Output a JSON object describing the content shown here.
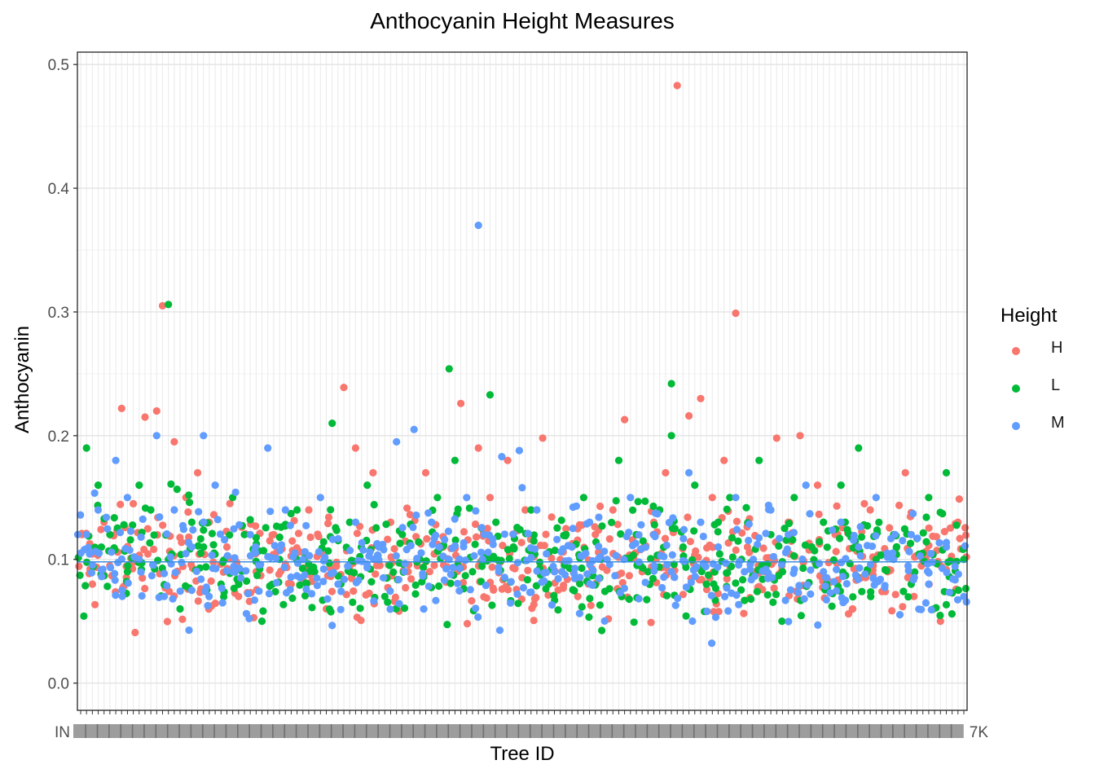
{
  "chart_data": {
    "type": "scatter",
    "title": "Anthocyanin Height Measures",
    "xlabel": "Tree ID",
    "ylabel": "Anthocyanin",
    "ylim": [
      -0.022,
      0.51
    ],
    "yticks": [
      "0.0",
      "0.1",
      "0.2",
      "0.3",
      "0.4",
      "0.5"
    ],
    "x_tick_text_visible": "IN",
    "x_tick_text_visible_end": "7K",
    "reference_line": {
      "y": 0.098,
      "color": "#3d8fe0"
    },
    "grid": true,
    "legend_position": "right",
    "legend": {
      "title": "Height",
      "entries": [
        {
          "name": "H",
          "color": "#F8766D"
        },
        {
          "name": "L",
          "color": "#00BA38"
        },
        {
          "name": "M",
          "color": "#619CFF"
        }
      ]
    },
    "series": [
      {
        "name": "H",
        "color": "#F8766D",
        "outliers": [
          [
            14,
            0.305
          ],
          [
            45,
            0.239
          ],
          [
            65,
            0.226
          ],
          [
            102,
            0.483
          ],
          [
            112,
            0.299
          ]
        ],
        "points": [
          [
            2,
            0.08
          ],
          [
            4,
            0.13
          ],
          [
            7,
            0.222
          ],
          [
            9,
            0.145
          ],
          [
            11,
            0.215
          ],
          [
            13,
            0.22
          ],
          [
            16,
            0.195
          ],
          [
            18,
            0.15
          ],
          [
            20,
            0.17
          ],
          [
            22,
            0.13
          ],
          [
            25,
            0.11
          ],
          [
            27,
            0.07
          ],
          [
            30,
            0.09
          ],
          [
            33,
            0.12
          ],
          [
            36,
            0.08
          ],
          [
            39,
            0.14
          ],
          [
            42,
            0.06
          ],
          [
            47,
            0.19
          ],
          [
            50,
            0.17
          ],
          [
            53,
            0.13
          ],
          [
            56,
            0.09
          ],
          [
            59,
            0.17
          ],
          [
            62,
            0.11
          ],
          [
            68,
            0.19
          ],
          [
            70,
            0.15
          ],
          [
            73,
            0.18
          ],
          [
            76,
            0.14
          ],
          [
            79,
            0.198
          ],
          [
            82,
            0.1
          ],
          [
            85,
            0.07
          ],
          [
            88,
            0.12
          ],
          [
            91,
            0.14
          ],
          [
            93,
            0.213
          ],
          [
            96,
            0.09
          ],
          [
            98,
            0.13
          ],
          [
            100,
            0.17
          ],
          [
            104,
            0.216
          ],
          [
            106,
            0.23
          ],
          [
            108,
            0.15
          ],
          [
            110,
            0.18
          ],
          [
            114,
            0.11
          ],
          [
            117,
            0.09
          ],
          [
            119,
            0.198
          ],
          [
            121,
            0.13
          ],
          [
            123,
            0.2
          ],
          [
            126,
            0.16
          ],
          [
            129,
            0.12
          ],
          [
            132,
            0.06
          ],
          [
            135,
            0.14
          ],
          [
            138,
            0.09
          ],
          [
            141,
            0.17
          ],
          [
            144,
            0.1
          ],
          [
            147,
            0.05
          ],
          [
            150,
            0.13
          ]
        ]
      },
      {
        "name": "L",
        "color": "#00BA38",
        "outliers": [
          [
            15,
            0.306
          ],
          [
            63,
            0.254
          ],
          [
            70,
            0.233
          ],
          [
            101,
            0.242
          ]
        ],
        "points": [
          [
            1,
            0.19
          ],
          [
            3,
            0.16
          ],
          [
            5,
            0.12
          ],
          [
            8,
            0.09
          ],
          [
            10,
            0.16
          ],
          [
            12,
            0.14
          ],
          [
            15,
            0.1
          ],
          [
            17,
            0.06
          ],
          [
            19,
            0.13
          ],
          [
            21,
            0.11
          ],
          [
            24,
            0.08
          ],
          [
            26,
            0.15
          ],
          [
            28,
            0.12
          ],
          [
            31,
            0.05
          ],
          [
            34,
            0.1
          ],
          [
            37,
            0.14
          ],
          [
            40,
            0.09
          ],
          [
            43,
            0.21
          ],
          [
            46,
            0.13
          ],
          [
            49,
            0.16
          ],
          [
            52,
            0.07
          ],
          [
            55,
            0.12
          ],
          [
            58,
            0.1
          ],
          [
            61,
            0.15
          ],
          [
            64,
            0.18
          ],
          [
            67,
            0.09
          ],
          [
            71,
            0.13
          ],
          [
            74,
            0.11
          ],
          [
            77,
            0.14
          ],
          [
            80,
            0.08
          ],
          [
            83,
            0.12
          ],
          [
            86,
            0.15
          ],
          [
            89,
            0.1
          ],
          [
            92,
            0.18
          ],
          [
            95,
            0.12
          ],
          [
            97,
            0.09
          ],
          [
            99,
            0.14
          ],
          [
            101,
            0.2
          ],
          [
            103,
            0.11
          ],
          [
            105,
            0.16
          ],
          [
            107,
            0.08
          ],
          [
            109,
            0.13
          ],
          [
            111,
            0.15
          ],
          [
            113,
            0.1
          ],
          [
            116,
            0.18
          ],
          [
            118,
            0.12
          ],
          [
            120,
            0.09
          ],
          [
            122,
            0.15
          ],
          [
            125,
            0.11
          ],
          [
            127,
            0.13
          ],
          [
            130,
            0.16
          ],
          [
            133,
            0.19
          ],
          [
            136,
            0.1
          ],
          [
            139,
            0.12
          ],
          [
            142,
            0.08
          ],
          [
            145,
            0.15
          ],
          [
            148,
            0.17
          ],
          [
            151,
            0.1
          ]
        ]
      },
      {
        "name": "M",
        "color": "#619CFF",
        "outliers": [
          [
            68,
            0.37
          ]
        ],
        "points": [
          [
            1,
            0.12
          ],
          [
            3,
            0.14
          ],
          [
            6,
            0.18
          ],
          [
            8,
            0.15
          ],
          [
            10,
            0.1
          ],
          [
            13,
            0.2
          ],
          [
            16,
            0.14
          ],
          [
            19,
            0.11
          ],
          [
            21,
            0.2
          ],
          [
            23,
            0.16
          ],
          [
            26,
            0.09
          ],
          [
            29,
            0.12
          ],
          [
            32,
            0.19
          ],
          [
            35,
            0.14
          ],
          [
            38,
            0.1
          ],
          [
            41,
            0.15
          ],
          [
            44,
            0.08
          ],
          [
            47,
            0.13
          ],
          [
            51,
            0.11
          ],
          [
            54,
            0.195
          ],
          [
            57,
            0.205
          ],
          [
            60,
            0.13
          ],
          [
            63,
            0.1
          ],
          [
            66,
            0.15
          ],
          [
            69,
            0.12
          ],
          [
            72,
            0.183
          ],
          [
            75,
            0.188
          ],
          [
            78,
            0.14
          ],
          [
            81,
            0.09
          ],
          [
            84,
            0.11
          ],
          [
            87,
            0.13
          ],
          [
            90,
            0.1
          ],
          [
            94,
            0.15
          ],
          [
            98,
            0.12
          ],
          [
            101,
            0.09
          ],
          [
            104,
            0.17
          ],
          [
            106,
            0.13
          ],
          [
            109,
            0.11
          ],
          [
            112,
            0.15
          ],
          [
            115,
            0.1
          ],
          [
            118,
            0.14
          ],
          [
            121,
            0.12
          ],
          [
            124,
            0.16
          ],
          [
            127,
            0.09
          ],
          [
            130,
            0.13
          ],
          [
            133,
            0.11
          ],
          [
            136,
            0.15
          ],
          [
            139,
            0.1
          ],
          [
            142,
            0.12
          ],
          [
            145,
            0.08
          ],
          [
            148,
            0.11
          ],
          [
            151,
            0.07
          ]
        ]
      }
    ]
  }
}
